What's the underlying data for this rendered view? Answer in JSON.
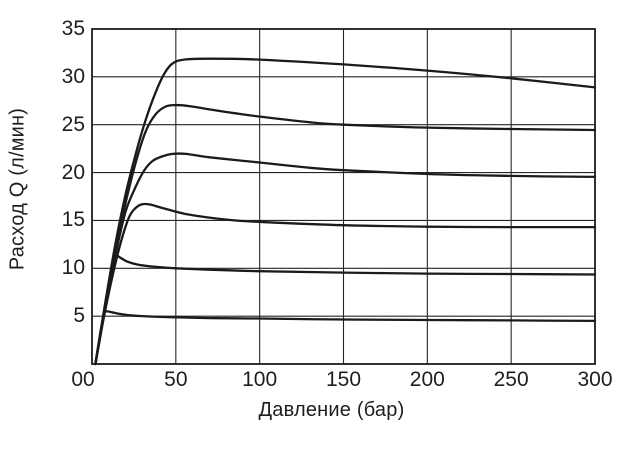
{
  "figure": {
    "background": "#ffffff",
    "curve_color": "#1b1b1d",
    "grid_color": "#262628",
    "text_color": "#1e1e22"
  },
  "chart_data": {
    "type": "line",
    "title": "",
    "xlabel": "Давление (бар)",
    "ylabel": "Расход Q (л/мин)",
    "xlim": [
      0,
      300
    ],
    "ylim": [
      0,
      35
    ],
    "xticks": [
      0,
      50,
      100,
      150,
      200,
      250,
      300
    ],
    "xtick_labels": [
      "00",
      "50",
      "100",
      "150",
      "200",
      "250",
      "300"
    ],
    "yticks": [
      5,
      10,
      15,
      20,
      25,
      30,
      35
    ],
    "ytick_labels": [
      "5",
      "10",
      "15",
      "20",
      "25",
      "30",
      "35"
    ],
    "grid": true,
    "legend": false,
    "series": [
      {
        "name": "curve-1",
        "points": [
          [
            2,
            0
          ],
          [
            8,
            6.5
          ],
          [
            14,
            12.6
          ],
          [
            20,
            17.7
          ],
          [
            26,
            21.9
          ],
          [
            32,
            25.5
          ],
          [
            38,
            28.4
          ],
          [
            43,
            30.3
          ],
          [
            48,
            31.4
          ],
          [
            55,
            31.8
          ],
          [
            70,
            31.9
          ],
          [
            100,
            31.8
          ],
          [
            150,
            31.3
          ],
          [
            200,
            30.65
          ],
          [
            250,
            29.85
          ],
          [
            300,
            28.9
          ]
        ]
      },
      {
        "name": "curve-2",
        "points": [
          [
            2,
            0
          ],
          [
            8,
            6.2
          ],
          [
            14,
            11.9
          ],
          [
            20,
            16.8
          ],
          [
            26,
            21.0
          ],
          [
            32,
            24.3
          ],
          [
            38,
            26.1
          ],
          [
            44,
            26.9
          ],
          [
            50,
            27.05
          ],
          [
            58,
            26.95
          ],
          [
            70,
            26.6
          ],
          [
            85,
            26.2
          ],
          [
            100,
            25.85
          ],
          [
            130,
            25.25
          ],
          [
            150,
            25.0
          ],
          [
            200,
            24.7
          ],
          [
            250,
            24.55
          ],
          [
            300,
            24.45
          ]
        ]
      },
      {
        "name": "curve-3",
        "points": [
          [
            2,
            0
          ],
          [
            8,
            6.0
          ],
          [
            14,
            11.4
          ],
          [
            20,
            15.9
          ],
          [
            26,
            18.5
          ],
          [
            31,
            20.2
          ],
          [
            36,
            21.2
          ],
          [
            42,
            21.7
          ],
          [
            48,
            21.95
          ],
          [
            56,
            21.95
          ],
          [
            70,
            21.6
          ],
          [
            100,
            21.05
          ],
          [
            130,
            20.5
          ],
          [
            150,
            20.25
          ],
          [
            200,
            19.85
          ],
          [
            250,
            19.65
          ],
          [
            300,
            19.55
          ]
        ]
      },
      {
        "name": "curve-4",
        "points": [
          [
            2,
            0
          ],
          [
            7,
            4.8
          ],
          [
            12,
            9.0
          ],
          [
            17,
            12.6
          ],
          [
            22,
            15.3
          ],
          [
            26,
            16.3
          ],
          [
            30,
            16.7
          ],
          [
            35,
            16.65
          ],
          [
            42,
            16.3
          ],
          [
            55,
            15.7
          ],
          [
            70,
            15.3
          ],
          [
            85,
            15.0
          ],
          [
            100,
            14.85
          ],
          [
            150,
            14.5
          ],
          [
            200,
            14.35
          ],
          [
            250,
            14.3
          ],
          [
            300,
            14.3
          ]
        ]
      },
      {
        "name": "curve-5",
        "points": [
          [
            2,
            0
          ],
          [
            5,
            3.0
          ],
          [
            8,
            6.0
          ],
          [
            11,
            8.9
          ],
          [
            13,
            10.6
          ],
          [
            14.5,
            11.3
          ],
          [
            17,
            11.1
          ],
          [
            21,
            10.7
          ],
          [
            27,
            10.4
          ],
          [
            35,
            10.2
          ],
          [
            50,
            10.0
          ],
          [
            70,
            9.85
          ],
          [
            100,
            9.7
          ],
          [
            150,
            9.55
          ],
          [
            200,
            9.45
          ],
          [
            250,
            9.4
          ],
          [
            300,
            9.35
          ]
        ]
      },
      {
        "name": "curve-6",
        "points": [
          [
            2,
            0
          ],
          [
            4,
            2.2
          ],
          [
            6,
            4.3
          ],
          [
            7.5,
            5.35
          ],
          [
            9,
            5.5
          ],
          [
            12,
            5.4
          ],
          [
            16,
            5.25
          ],
          [
            22,
            5.1
          ],
          [
            30,
            5.0
          ],
          [
            45,
            4.9
          ],
          [
            70,
            4.8
          ],
          [
            100,
            4.75
          ],
          [
            150,
            4.65
          ],
          [
            200,
            4.6
          ],
          [
            250,
            4.55
          ],
          [
            300,
            4.5
          ]
        ]
      }
    ]
  }
}
